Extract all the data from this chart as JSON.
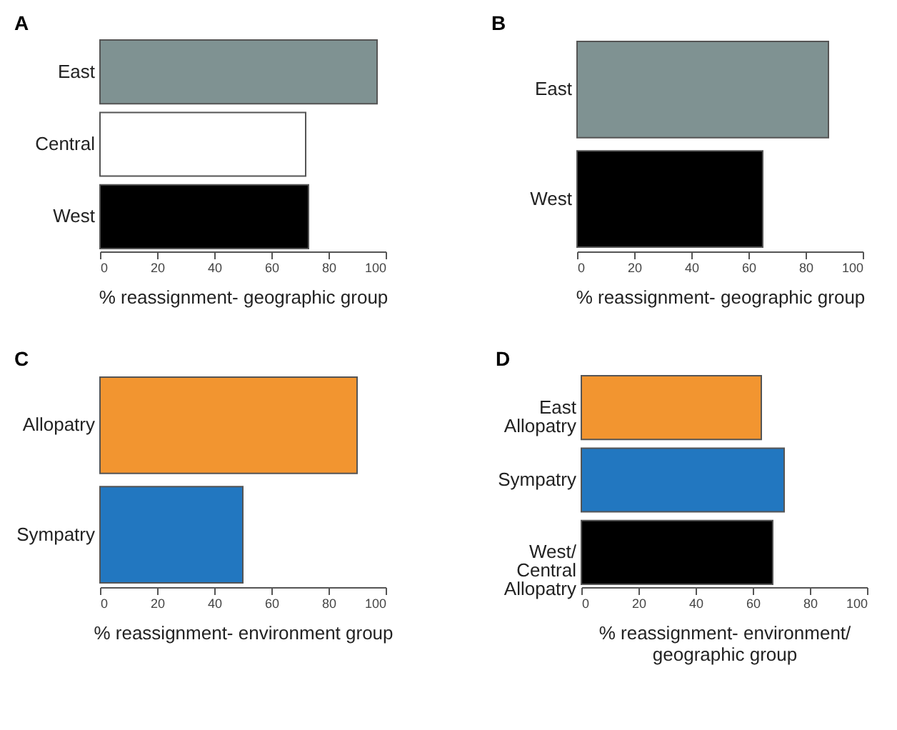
{
  "chart_data": [
    {
      "type": "bar",
      "title": "A",
      "orientation": "horizontal",
      "categories": [
        "East",
        "Central",
        "West"
      ],
      "values": [
        97,
        72,
        73
      ],
      "colors": [
        "#7f9292",
        "#ffffff",
        "#000000"
      ],
      "xlabel": "% reassignment- geographic group",
      "xlim": [
        0,
        100
      ],
      "xticks": [
        0,
        20,
        40,
        60,
        80,
        100
      ],
      "grid": false
    },
    {
      "type": "bar",
      "title": "B",
      "orientation": "horizontal",
      "categories": [
        "East",
        "West"
      ],
      "values": [
        88,
        65
      ],
      "colors": [
        "#7f9292",
        "#000000"
      ],
      "xlabel": "% reassignment- geographic group",
      "xlim": [
        0,
        100
      ],
      "xticks": [
        0,
        20,
        40,
        60,
        80,
        100
      ],
      "grid": false
    },
    {
      "type": "bar",
      "title": "C",
      "orientation": "horizontal",
      "categories": [
        "Allopatry",
        "Sympatry"
      ],
      "values": [
        90,
        50
      ],
      "colors": [
        "#f29530",
        "#2277c0"
      ],
      "xlabel": "% reassignment- environment group",
      "xlim": [
        0,
        100
      ],
      "xticks": [
        0,
        20,
        40,
        60,
        80,
        100
      ],
      "grid": false
    },
    {
      "type": "bar",
      "title": "D",
      "orientation": "horizontal",
      "categories": [
        "East Allopatry",
        "Sympatry",
        "West/ Central Allopatry"
      ],
      "values": [
        63,
        71,
        67
      ],
      "colors": [
        "#f29530",
        "#2277c0",
        "#000000"
      ],
      "xlabel": "% reassignment- environment/ geographic group",
      "xlim": [
        0,
        100
      ],
      "xticks": [
        0,
        20,
        40,
        60,
        80,
        100
      ],
      "grid": false
    }
  ]
}
